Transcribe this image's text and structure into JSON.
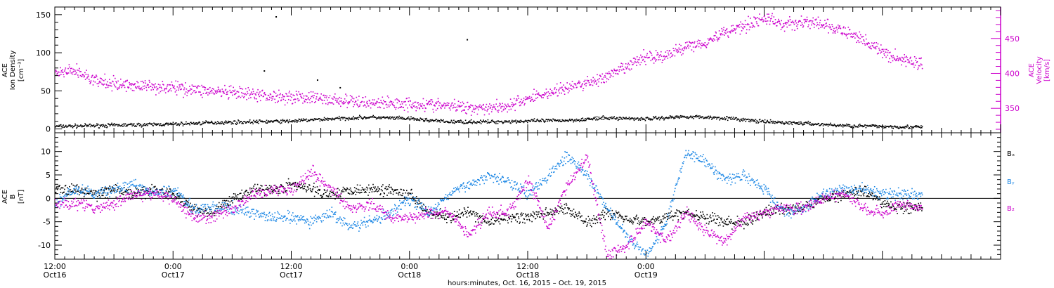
{
  "chart_data": [
    {
      "type": "scatter",
      "panel": "top",
      "ylabel_left": [
        "ACE",
        "Ion Density",
        "[cm⁻³]"
      ],
      "ylabel_right": [
        "ACE",
        "Velocity",
        "[km/s]"
      ],
      "left_axis": {
        "ylim": [
          -5,
          160
        ],
        "ticks": [
          0,
          50,
          100,
          150
        ]
      },
      "right_axis": {
        "ylim": [
          315,
          495
        ],
        "ticks": [
          350,
          400,
          450
        ],
        "color": "#cc00cc"
      },
      "series": [
        {
          "color": "#000000",
          "axis": "left",
          "x": [
            0,
            4,
            8,
            12,
            16,
            20,
            24,
            28,
            32,
            36,
            40,
            44,
            48,
            52,
            56,
            60,
            64,
            68,
            72,
            76,
            80,
            84,
            88
          ],
          "y": [
            4,
            5,
            6,
            7,
            9,
            10,
            11,
            14,
            16,
            14,
            10,
            10,
            11,
            12,
            15,
            14,
            17,
            15,
            10,
            8,
            5,
            4,
            3
          ]
        },
        {
          "color": "#cc00cc",
          "axis": "right",
          "x": [
            0,
            2,
            4,
            6,
            10,
            14,
            18,
            22,
            26,
            30,
            34,
            38,
            42,
            44,
            46,
            48,
            52,
            56,
            58,
            60,
            62,
            64,
            66,
            68,
            70,
            72,
            74,
            76,
            78,
            80,
            82,
            84,
            86,
            88
          ],
          "y": [
            400,
            405,
            390,
            385,
            382,
            378,
            372,
            368,
            366,
            360,
            358,
            356,
            352,
            352,
            354,
            365,
            380,
            395,
            410,
            425,
            425,
            440,
            445,
            460,
            470,
            480,
            470,
            475,
            470,
            460,
            450,
            430,
            420,
            415
          ]
        }
      ],
      "scattered_points": {
        "x": [
          22.4,
          21.2,
          26.6,
          28.9,
          41.8
        ],
        "y": [
          148,
          77,
          65,
          55,
          118
        ]
      }
    },
    {
      "type": "scatter",
      "panel": "bottom",
      "ylabel": [
        "ACE",
        "B",
        "[nT]"
      ],
      "ylim": [
        -13,
        14
      ],
      "ticks": [
        -10,
        -5,
        0,
        5,
        10
      ],
      "legend": [
        "Bₓ",
        "Bᵧ",
        "B₂"
      ],
      "legend_colors": [
        "#000000",
        "#1e88e5",
        "#cc00cc"
      ],
      "series": [
        {
          "color": "#000000",
          "x": [
            0,
            2,
            4,
            6,
            8,
            10,
            12,
            14,
            16,
            18,
            20,
            22,
            24,
            26,
            28,
            30,
            32,
            34,
            36,
            38,
            40,
            42,
            44,
            46,
            48,
            50,
            52,
            54,
            56,
            58,
            60,
            62,
            64,
            66,
            68,
            70,
            72,
            74,
            76,
            78,
            80,
            82,
            84,
            86,
            88
          ],
          "y": [
            2,
            2,
            1,
            2,
            1,
            2,
            1,
            -2,
            -3,
            0,
            2,
            2,
            3,
            2,
            1,
            2,
            2,
            2,
            1,
            -3,
            -4,
            -3,
            -5,
            -4,
            -4,
            -3,
            -2,
            -5,
            -3,
            -4,
            -5,
            -4,
            -3,
            -4,
            -5,
            -5,
            -3,
            -2,
            -2,
            0,
            1,
            2,
            -1,
            -2,
            -2
          ]
        },
        {
          "color": "#1e88e5",
          "x": [
            0,
            2,
            4,
            6,
            8,
            10,
            12,
            14,
            16,
            18,
            20,
            22,
            24,
            26,
            28,
            30,
            32,
            34,
            36,
            38,
            40,
            42,
            44,
            46,
            48,
            50,
            52,
            54,
            56,
            58,
            60,
            62,
            64,
            66,
            68,
            70,
            72,
            74,
            76,
            78,
            80,
            82,
            84,
            86,
            88
          ],
          "y": [
            -1,
            2,
            1,
            2,
            3,
            1,
            2,
            -2,
            -2,
            -2,
            -3,
            -4,
            -4,
            -5,
            -3,
            -6,
            -5,
            -3,
            0,
            -3,
            1,
            3,
            5,
            4,
            1,
            5,
            9,
            5,
            -2,
            -8,
            -12,
            -5,
            10,
            8,
            4,
            5,
            2,
            -3,
            -2,
            1,
            2,
            2,
            1,
            1,
            1
          ]
        },
        {
          "color": "#cc00cc",
          "x": [
            0,
            2,
            4,
            6,
            8,
            10,
            12,
            14,
            16,
            18,
            20,
            22,
            24,
            26,
            28,
            30,
            32,
            34,
            36,
            38,
            40,
            42,
            44,
            46,
            48,
            50,
            52,
            54,
            56,
            58,
            60,
            62,
            64,
            66,
            68,
            70,
            72,
            74,
            76,
            78,
            80,
            82,
            84,
            86,
            88
          ],
          "y": [
            -1,
            -1,
            -2,
            -1,
            1,
            1,
            0,
            -4,
            -4,
            -2,
            1,
            2,
            2,
            6,
            2,
            -2,
            -1,
            -4,
            -4,
            -3,
            -3,
            -8,
            -3,
            -3,
            4,
            -6,
            3,
            9,
            -12,
            -10,
            -5,
            -9,
            -3,
            -7,
            -9,
            -4,
            -3,
            -2,
            -2,
            0,
            1,
            -2,
            -3,
            -1,
            -2
          ]
        }
      ]
    }
  ],
  "x_axis": {
    "xlim": [
      0,
      96
    ],
    "major_ticks": [
      0,
      12,
      24,
      36,
      48,
      60,
      72,
      84,
      96
    ],
    "tick_labels": [
      {
        "x": 0,
        "time": "12:00",
        "date": "Oct16"
      },
      {
        "x": 12,
        "time": "0:00",
        "date": "Oct17"
      },
      {
        "x": 24,
        "time": "12:00",
        "date": "Oct17"
      },
      {
        "x": 36,
        "time": "0:00",
        "date": "Oct18"
      },
      {
        "x": 48,
        "time": "12:00",
        "date": "Oct18"
      },
      {
        "x": 60,
        "time": "0:00",
        "date": "Oct19"
      }
    ],
    "xlabel": "hours:minutes, Oct. 16, 2015 – Oct. 19, 2015"
  }
}
